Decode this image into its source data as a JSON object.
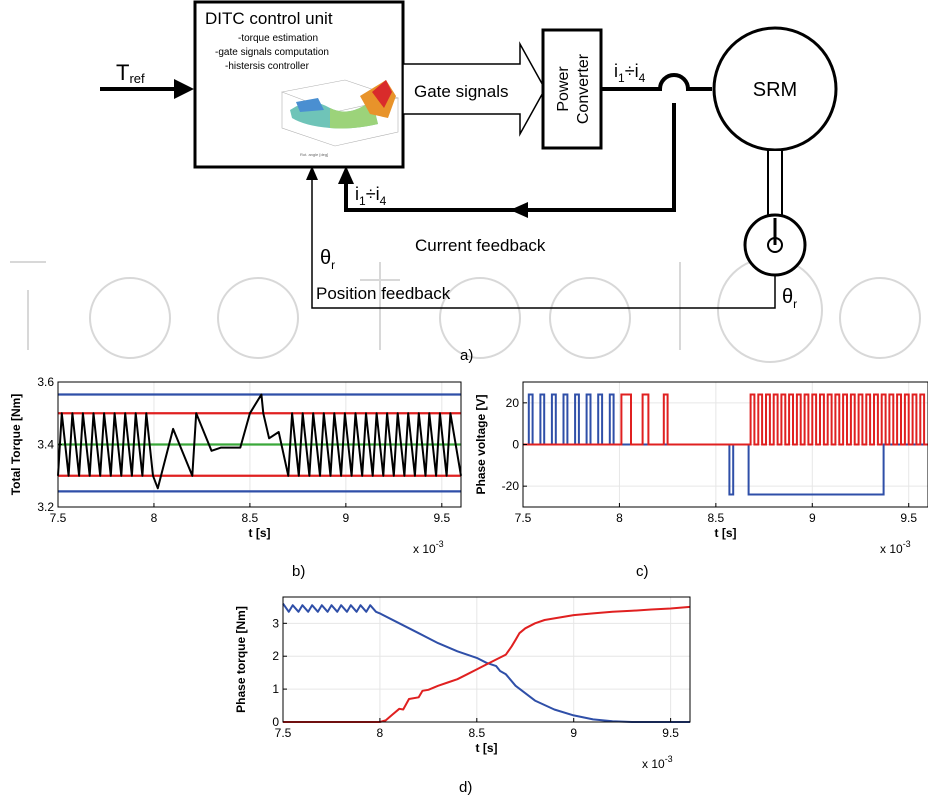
{
  "diagram": {
    "tref_main": "T",
    "tref_sub": "ref",
    "ditc_title": "DITC control unit",
    "ditc_items": [
      "-torque estimation",
      "-gate signals computation",
      "-histersis controller"
    ],
    "gate_signals": "Gate signals",
    "power_converter_line1": "Power",
    "power_converter_line2": "Converter",
    "current_label_main": "i",
    "current_label_sub1": "1",
    "current_label_div": "÷i",
    "current_label_sub2": "4",
    "srm": "SRM",
    "current_feedback": "Current feedback",
    "theta_main": "θ",
    "theta_sub": "r",
    "position_feedback": "Position feedback"
  },
  "captions": {
    "a": "a)",
    "b": "b)",
    "c": "c)",
    "d": "d)"
  },
  "chart_data": [
    {
      "type": "line",
      "ylabel": "Total Torque [Nm]",
      "xlabel": "t [s]",
      "x_multiplier": "x 10",
      "x_exponent": "-3",
      "xlim": [
        7.5,
        9.6
      ],
      "ylim": [
        3.2,
        3.6
      ],
      "xticks": [
        7.5,
        8,
        8.5,
        9,
        9.5
      ],
      "yticks": [
        3.2,
        3.4,
        3.6
      ],
      "hlines": [
        {
          "y": 3.56,
          "color": "#2f4fa8"
        },
        {
          "y": 3.5,
          "color": "#e02020"
        },
        {
          "y": 3.4,
          "color": "#3aa83a"
        },
        {
          "y": 3.3,
          "color": "#e02020"
        },
        {
          "y": 3.25,
          "color": "#2f4fa8"
        }
      ],
      "series": [
        {
          "color": "#000000",
          "x": [
            7.5,
            7.52,
            7.555,
            7.575,
            7.61,
            7.63,
            7.665,
            7.685,
            7.72,
            7.74,
            7.775,
            7.795,
            7.83,
            7.85,
            7.885,
            7.905,
            7.94,
            7.96,
            7.995,
            8.02,
            8.1,
            8.2,
            8.22,
            8.3,
            8.35,
            8.45,
            8.5,
            8.56,
            8.57,
            8.6,
            8.65,
            8.7,
            8.72,
            8.755,
            8.775,
            8.81,
            8.83,
            8.865,
            8.885,
            8.92,
            8.94,
            8.975,
            8.995,
            9.03,
            9.05,
            9.085,
            9.105,
            9.14,
            9.16,
            9.195,
            9.215,
            9.25,
            9.27,
            9.305,
            9.325,
            9.36,
            9.38,
            9.415,
            9.435,
            9.47,
            9.49,
            9.525,
            9.545,
            9.6
          ],
          "y": [
            3.3,
            3.5,
            3.3,
            3.5,
            3.3,
            3.5,
            3.3,
            3.5,
            3.3,
            3.5,
            3.3,
            3.5,
            3.3,
            3.5,
            3.3,
            3.5,
            3.3,
            3.5,
            3.3,
            3.26,
            3.45,
            3.3,
            3.5,
            3.38,
            3.39,
            3.39,
            3.5,
            3.56,
            3.5,
            3.42,
            3.44,
            3.3,
            3.5,
            3.3,
            3.5,
            3.3,
            3.5,
            3.3,
            3.5,
            3.3,
            3.5,
            3.3,
            3.5,
            3.3,
            3.5,
            3.3,
            3.5,
            3.3,
            3.5,
            3.3,
            3.5,
            3.3,
            3.5,
            3.3,
            3.5,
            3.3,
            3.5,
            3.3,
            3.5,
            3.3,
            3.5,
            3.3,
            3.5,
            3.3
          ]
        }
      ]
    },
    {
      "type": "line",
      "ylabel": "Phase voltage [V]",
      "xlabel": "t [s]",
      "x_multiplier": "x 10",
      "x_exponent": "-3",
      "xlim": [
        7.5,
        9.6
      ],
      "ylim": [
        -30,
        30
      ],
      "xticks": [
        7.5,
        8,
        8.5,
        9,
        9.5
      ],
      "yticks": [
        -20,
        0,
        20
      ],
      "series": [
        {
          "color": "#2f4fa8",
          "pulses": [
            [
              7.53,
              7.55
            ],
            [
              7.59,
              7.61
            ],
            [
              7.65,
              7.67
            ],
            [
              7.71,
              7.73
            ],
            [
              7.77,
              7.79
            ],
            [
              7.83,
              7.85
            ],
            [
              7.89,
              7.91
            ],
            [
              7.95,
              7.97
            ]
          ],
          "level": 24,
          "neg_pulses": [
            [
              8.57,
              8.59
            ],
            [
              8.67,
              9.37
            ]
          ],
          "neg_level": -24
        },
        {
          "color": "#e02020",
          "pulses": [
            [
              8.01,
              8.06
            ],
            [
              8.12,
              8.15
            ],
            [
              8.23,
              8.25
            ],
            [
              8.68,
              8.7
            ],
            [
              8.72,
              8.74
            ],
            [
              8.76,
              8.78
            ],
            [
              8.8,
              8.82
            ],
            [
              8.84,
              8.86
            ],
            [
              8.88,
              8.9
            ],
            [
              8.92,
              8.94
            ],
            [
              8.96,
              8.98
            ],
            [
              9.0,
              9.02
            ],
            [
              9.04,
              9.06
            ],
            [
              9.08,
              9.1
            ],
            [
              9.12,
              9.14
            ],
            [
              9.16,
              9.18
            ],
            [
              9.2,
              9.22
            ],
            [
              9.24,
              9.26
            ],
            [
              9.28,
              9.3
            ],
            [
              9.32,
              9.34
            ],
            [
              9.36,
              9.38
            ],
            [
              9.4,
              9.42
            ],
            [
              9.44,
              9.46
            ],
            [
              9.48,
              9.5
            ],
            [
              9.52,
              9.54
            ],
            [
              9.56,
              9.58
            ]
          ],
          "level": 24
        }
      ]
    },
    {
      "type": "line",
      "ylabel": "Phase torque [Nm]",
      "xlabel": "t [s]",
      "x_multiplier": "x 10",
      "x_exponent": "-3",
      "xlim": [
        7.5,
        9.6
      ],
      "ylim": [
        0,
        3.8
      ],
      "xticks": [
        7.5,
        8,
        8.5,
        9,
        9.5
      ],
      "yticks": [
        0,
        1,
        2,
        3
      ],
      "series": [
        {
          "color": "#2f4fa8",
          "x": [
            7.5,
            7.53,
            7.55,
            7.58,
            7.6,
            7.63,
            7.65,
            7.68,
            7.7,
            7.73,
            7.75,
            7.78,
            7.8,
            7.83,
            7.85,
            7.88,
            7.9,
            7.93,
            7.95,
            7.98,
            8.0,
            8.1,
            8.2,
            8.3,
            8.4,
            8.5,
            8.55,
            8.6,
            8.62,
            8.65,
            8.7,
            8.8,
            8.9,
            9.0,
            9.1,
            9.2,
            9.3,
            9.4,
            9.6
          ],
          "y": [
            3.6,
            3.35,
            3.55,
            3.35,
            3.55,
            3.35,
            3.55,
            3.35,
            3.55,
            3.35,
            3.55,
            3.35,
            3.55,
            3.35,
            3.55,
            3.35,
            3.55,
            3.35,
            3.55,
            3.35,
            3.3,
            3.0,
            2.7,
            2.4,
            2.15,
            1.95,
            1.8,
            1.7,
            1.55,
            1.45,
            1.1,
            0.65,
            0.38,
            0.2,
            0.08,
            0.02,
            0.0,
            0.0,
            0.0
          ]
        },
        {
          "color": "#e02020",
          "x": [
            7.5,
            8.0,
            8.03,
            8.06,
            8.1,
            8.12,
            8.15,
            8.2,
            8.22,
            8.25,
            8.3,
            8.35,
            8.4,
            8.45,
            8.5,
            8.55,
            8.6,
            8.65,
            8.68,
            8.7,
            8.72,
            8.75,
            8.8,
            8.85,
            8.9,
            9.0,
            9.1,
            9.2,
            9.3,
            9.4,
            9.5,
            9.6
          ],
          "y": [
            0.0,
            0.0,
            0.05,
            0.2,
            0.4,
            0.38,
            0.7,
            0.75,
            0.95,
            0.98,
            1.1,
            1.2,
            1.3,
            1.45,
            1.6,
            1.75,
            1.9,
            2.05,
            2.3,
            2.5,
            2.7,
            2.85,
            3.0,
            3.1,
            3.15,
            3.25,
            3.3,
            3.35,
            3.38,
            3.42,
            3.45,
            3.5
          ]
        }
      ]
    }
  ],
  "colors": {
    "blue": "#2f4fa8",
    "red": "#e02020",
    "green": "#3aa83a",
    "black": "#000000",
    "grid": "#e6e6e6"
  }
}
